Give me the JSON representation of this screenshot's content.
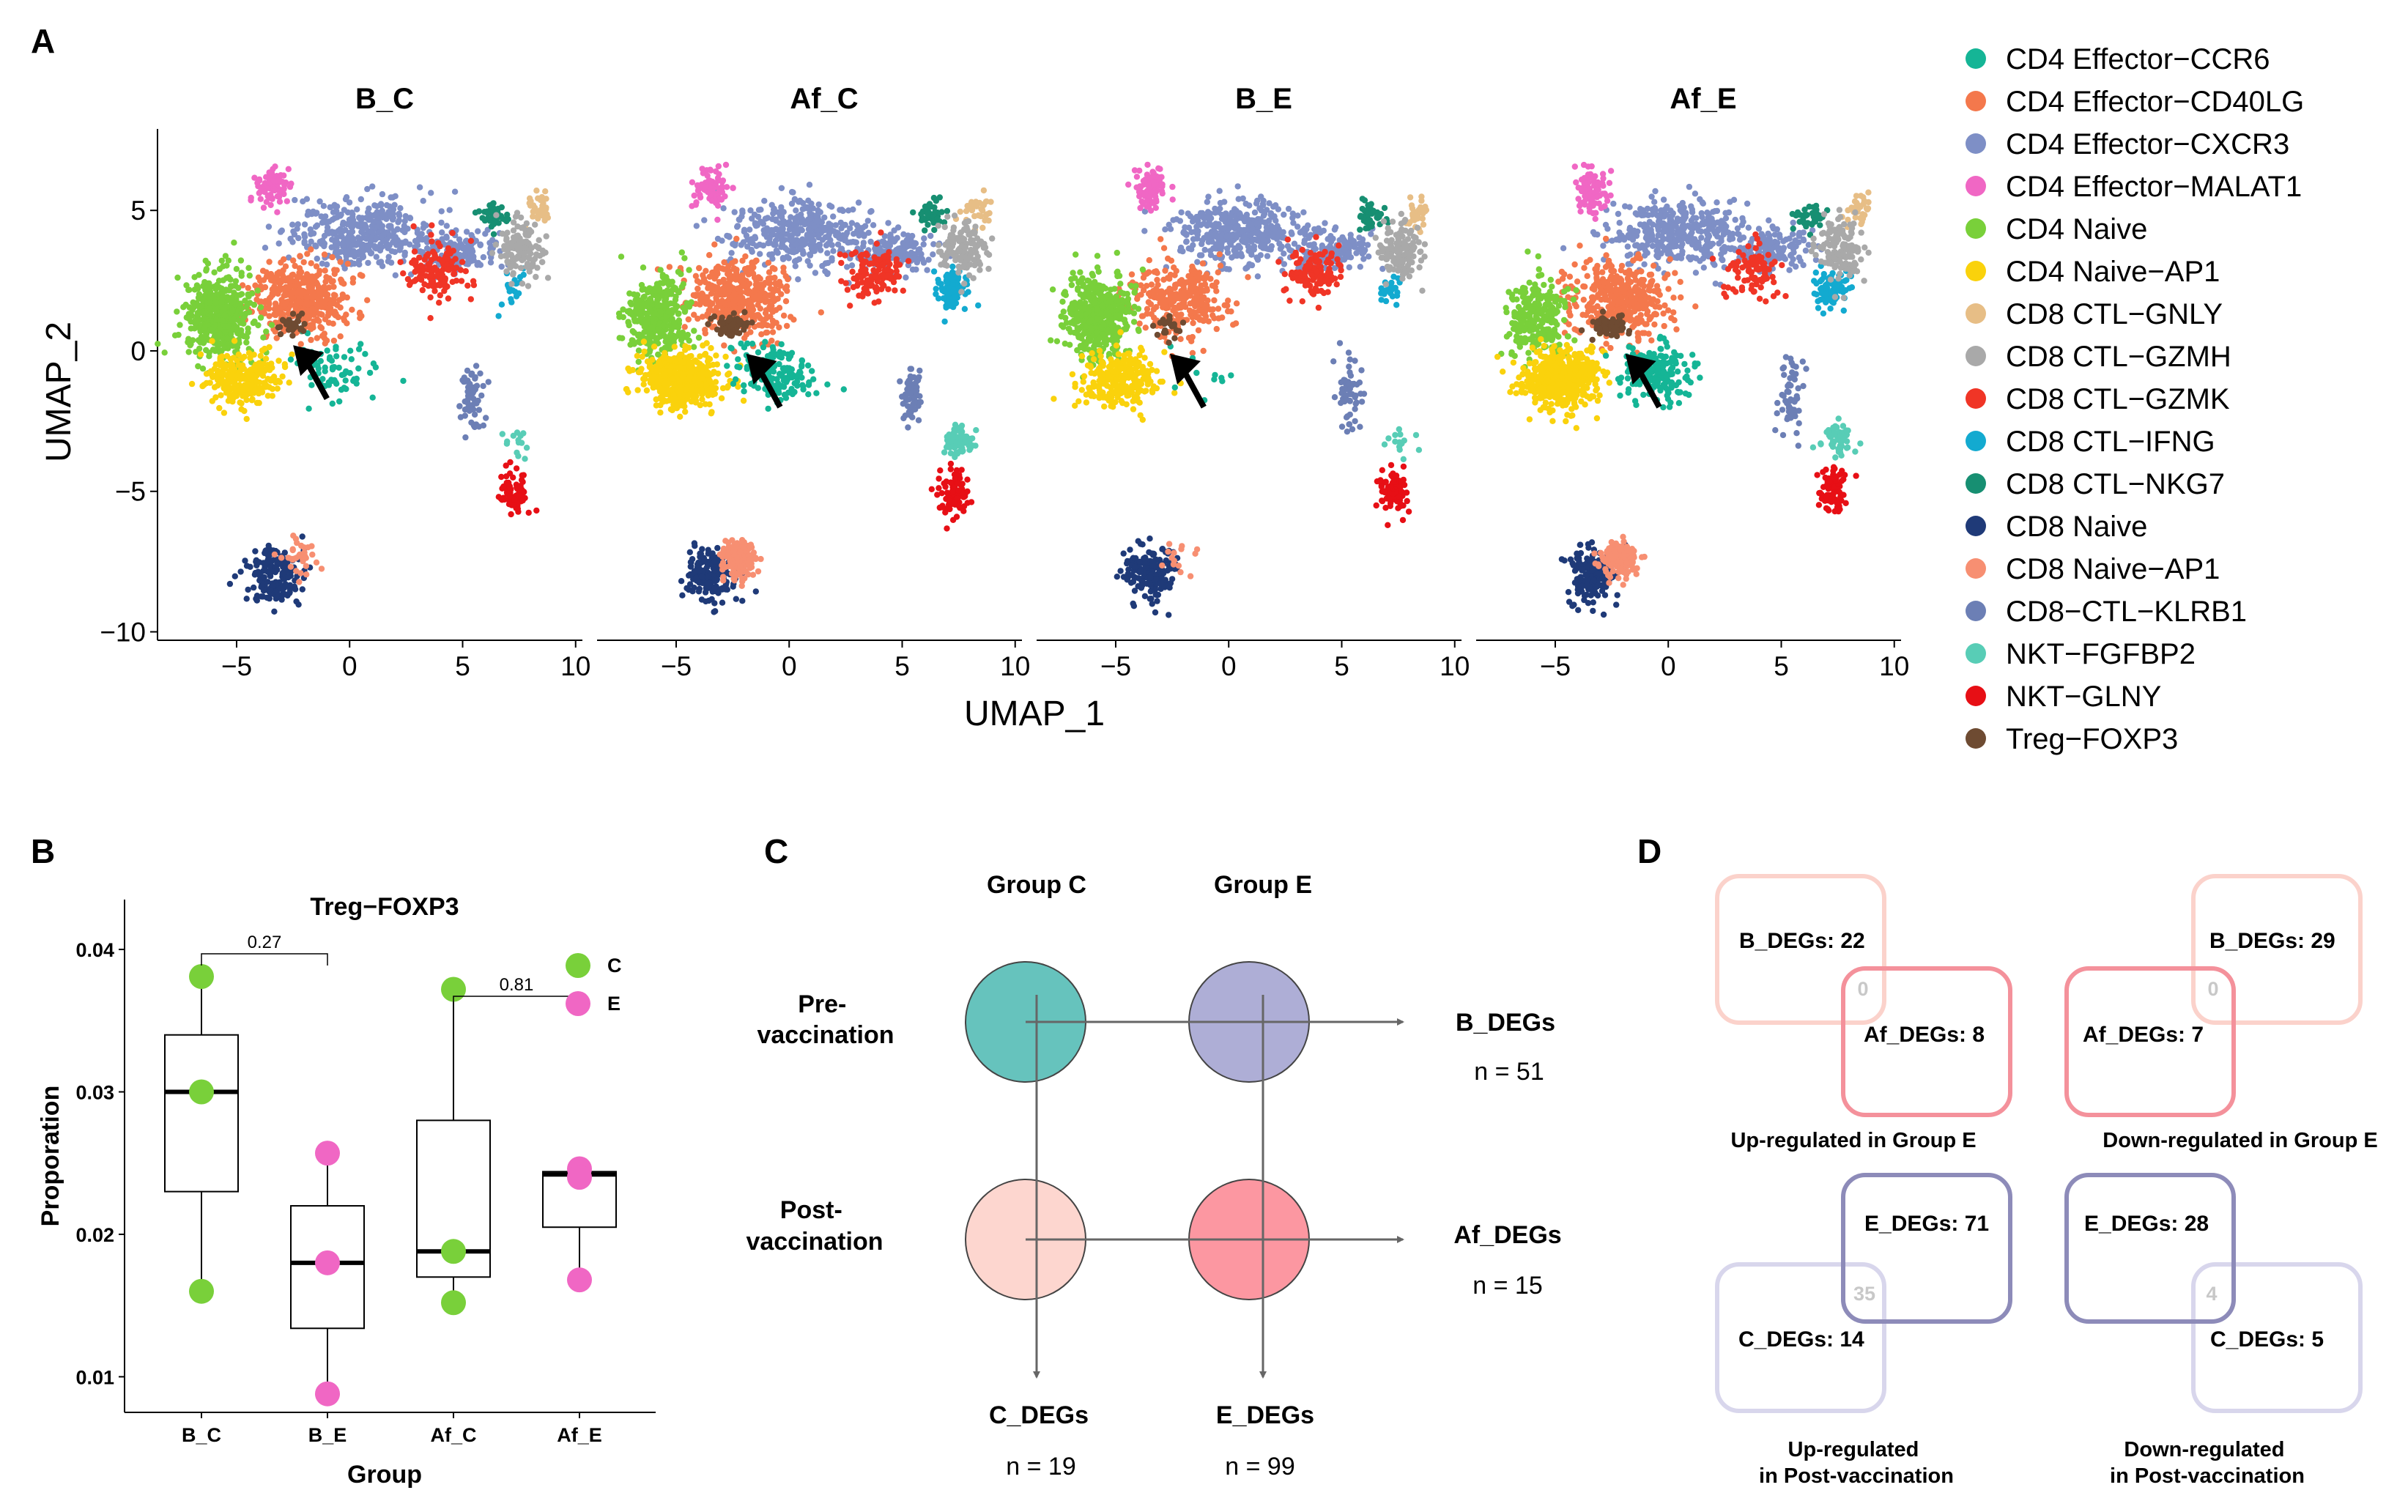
{
  "panels": {
    "a": "A",
    "b": "B",
    "c": "C",
    "d": "D"
  },
  "colors": {
    "CD4 Effector-CCR6": "#15b596",
    "CD4 Effector-CD40LG": "#f4784c",
    "CD4 Effector-CXCR3": "#7e8fc6",
    "CD4 Effector-MALAT1": "#f067c4",
    "CD4 Naive": "#79d03a",
    "CD4 Naive-AP1": "#fad20c",
    "CD8 CTL-GNLY": "#e7be86",
    "CD8 CTL-GZMH": "#a9a9a9",
    "CD8 CTL-GZMK": "#f03526",
    "CD8 CTL-IFNG": "#13aad0",
    "CD8 CTL-NKG7": "#178f72",
    "CD8 Naive": "#1f3a78",
    "CD8 Naive-AP1": "#f78f72",
    "CD8-CTL-KLRB1": "#6c7fb5",
    "NKT-FGFBP2": "#58cdb6",
    "NKT-GLNY": "#e70f15",
    "Treg-FOXP3": "#6e4b32",
    "groupC": "#79d03a",
    "groupE": "#f067c4",
    "preC": "#66c3bd",
    "preE": "#aeaed6",
    "postC": "#fdd6cf",
    "postE": "#fc97a1"
  },
  "chart_data": [
    {
      "type": "scatter",
      "subtype": "umap",
      "panels": [
        "B_C",
        "Af_C",
        "B_E",
        "Af_E"
      ],
      "xlabel": "UMAP_1",
      "ylabel": "UMAP_2",
      "xticks": [
        -5,
        0,
        5,
        10
      ],
      "yticks": [
        5,
        0,
        -5,
        -10
      ],
      "xlim": [
        -8.5,
        10.3
      ],
      "ylim": [
        -10.3,
        7.9
      ],
      "legend": [
        "CD4 Effector−CCR6",
        "CD4 Effector−CD40LG",
        "CD4 Effector−CXCR3",
        "CD4 Effector−MALAT1",
        "CD4 Naive",
        "CD4 Naive−AP1",
        "CD8 CTL−GNLY",
        "CD8 CTL−GZMH",
        "CD8 CTL−GZMK",
        "CD8 CTL−IFNG",
        "CD8 CTL−NKG7",
        "CD8 Naive",
        "CD8 Naive−AP1",
        "CD8−CTL−KLRB1",
        "NKT−FGFBP2",
        "NKT−GLNY",
        "Treg−FOXP3"
      ],
      "legend_position": "right",
      "annotation": "arrow pointing at Treg-FOXP3 cluster"
    },
    {
      "type": "box",
      "title": "Treg−FOXP3",
      "xlabel": "Group",
      "ylabel": "Proporation",
      "categories": [
        "B_C",
        "B_E",
        "Af_C",
        "Af_E"
      ],
      "yticks": [
        "0.04",
        "0.03",
        "0.02",
        "0.01"
      ],
      "ylim": [
        0.0075,
        0.0435
      ],
      "boxes": [
        {
          "group": "B_C",
          "min": 0.016,
          "q1": 0.023,
          "median": 0.03,
          "q3": 0.034,
          "max": 0.038
        },
        {
          "group": "B_E",
          "min": 0.0088,
          "q1": 0.0134,
          "median": 0.018,
          "q3": 0.022,
          "max": 0.0257
        },
        {
          "group": "Af_C",
          "min": 0.0152,
          "q1": 0.017,
          "median": 0.0188,
          "q3": 0.028,
          "max": 0.0372
        },
        {
          "group": "Af_E",
          "min": 0.0168,
          "q1": 0.0205,
          "median": 0.0242,
          "q3": 0.0244,
          "max": 0.0246
        }
      ],
      "points": [
        {
          "group": "B_C",
          "series": "C",
          "y": 0.0381
        },
        {
          "group": "B_C",
          "series": "C",
          "y": 0.03
        },
        {
          "group": "B_C",
          "series": "C",
          "y": 0.016
        },
        {
          "group": "B_E",
          "series": "E",
          "y": 0.0257
        },
        {
          "group": "B_E",
          "series": "E",
          "y": 0.018
        },
        {
          "group": "B_E",
          "series": "E",
          "y": 0.0088
        },
        {
          "group": "Af_C",
          "series": "C",
          "y": 0.0372
        },
        {
          "group": "Af_C",
          "series": "C",
          "y": 0.0188
        },
        {
          "group": "Af_C",
          "series": "C",
          "y": 0.0152
        },
        {
          "group": "Af_E",
          "series": "E",
          "y": 0.0246
        },
        {
          "group": "Af_E",
          "series": "E",
          "y": 0.024
        },
        {
          "group": "Af_E",
          "series": "E",
          "y": 0.0168
        }
      ],
      "comparisons": [
        {
          "from": "B_C",
          "to": "B_E",
          "label": "0.27"
        },
        {
          "from": "Af_C",
          "to": "Af_E",
          "label": "0.81"
        }
      ],
      "legend": [
        {
          "label": "C",
          "series": "C"
        },
        {
          "label": "E",
          "series": "E"
        }
      ],
      "legend_position": "top-right"
    }
  ],
  "panelC": {
    "group_c": "Group C",
    "group_e": "Group E",
    "pre_line1": "Pre-",
    "pre_line2": "vaccination",
    "post_line1": "Post-",
    "post_line2": "vaccination",
    "b_degs": "B_DEGs",
    "b_n": "n =  51",
    "af_degs": "Af_DEGs",
    "af_n": "n =  15",
    "c_degs": "C_DEGs",
    "c_n": "n = 19",
    "e_degs": "E_DEGs",
    "e_n": "n = 99"
  },
  "panelD": {
    "up_e": {
      "a": "B_DEGs: 22",
      "b": "Af_DEGs: 8",
      "overlap": "0",
      "caption": "Up-regulated in Group E"
    },
    "down_e": {
      "a": "B_DEGs: 29",
      "b": "Af_DEGs: 7",
      "overlap": "0",
      "caption": "Down-regulated in Group E"
    },
    "up_post": {
      "a": "E_DEGs: 71",
      "b": "C_DEGs: 14",
      "overlap": "35",
      "caption1": "Up-regulated",
      "caption2": "in Post-vaccination"
    },
    "down_post": {
      "a": "E_DEGs: 28",
      "b": "C_DEGs: 5",
      "overlap": "4",
      "caption1": "Down-regulated",
      "caption2": "in Post-vaccination"
    }
  }
}
